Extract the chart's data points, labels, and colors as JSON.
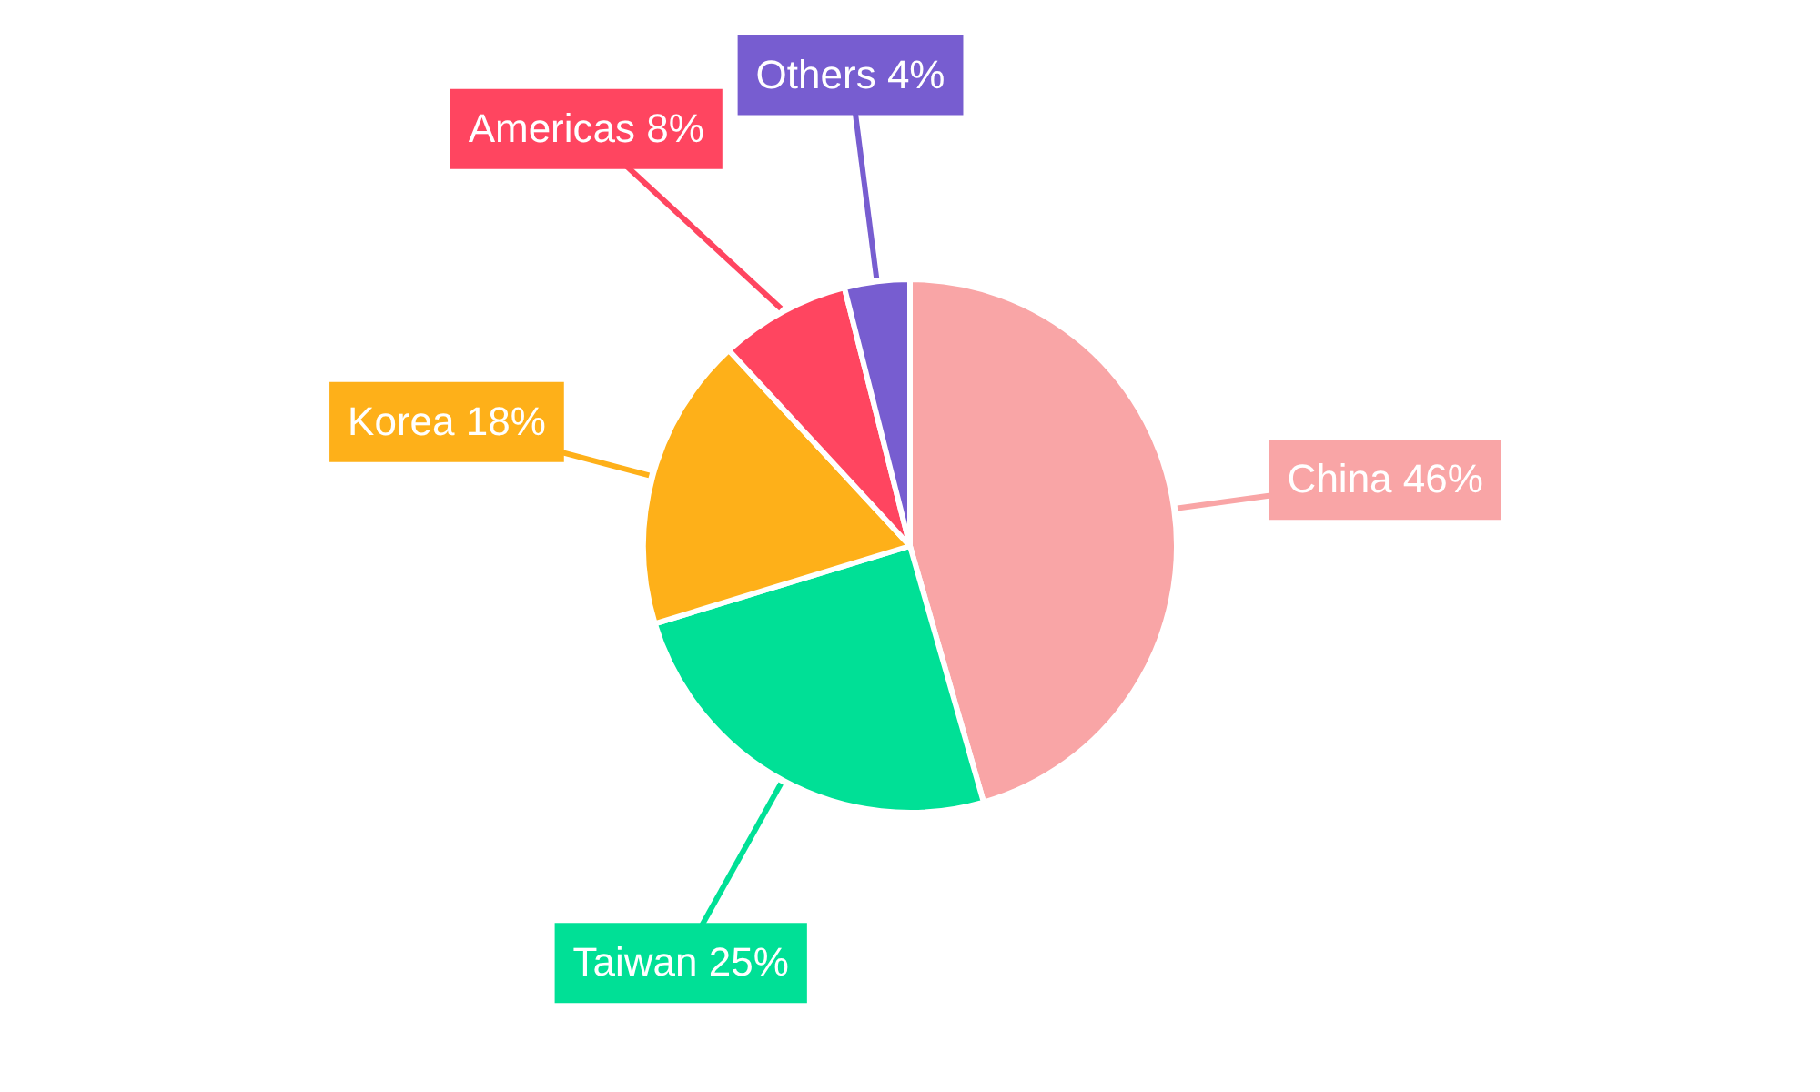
{
  "chart_data": {
    "type": "pie",
    "categories": [
      "China",
      "Taiwan",
      "Korea",
      "Americas",
      "Others"
    ],
    "values": [
      46,
      25,
      18,
      8,
      4
    ],
    "value_labels": [
      "46%",
      "25%",
      "18%",
      "8%",
      "4%"
    ],
    "colors": [
      "#f9a5a6",
      "#00e096",
      "#feb019",
      "#ff4560",
      "#775dd0"
    ],
    "legend": false
  }
}
